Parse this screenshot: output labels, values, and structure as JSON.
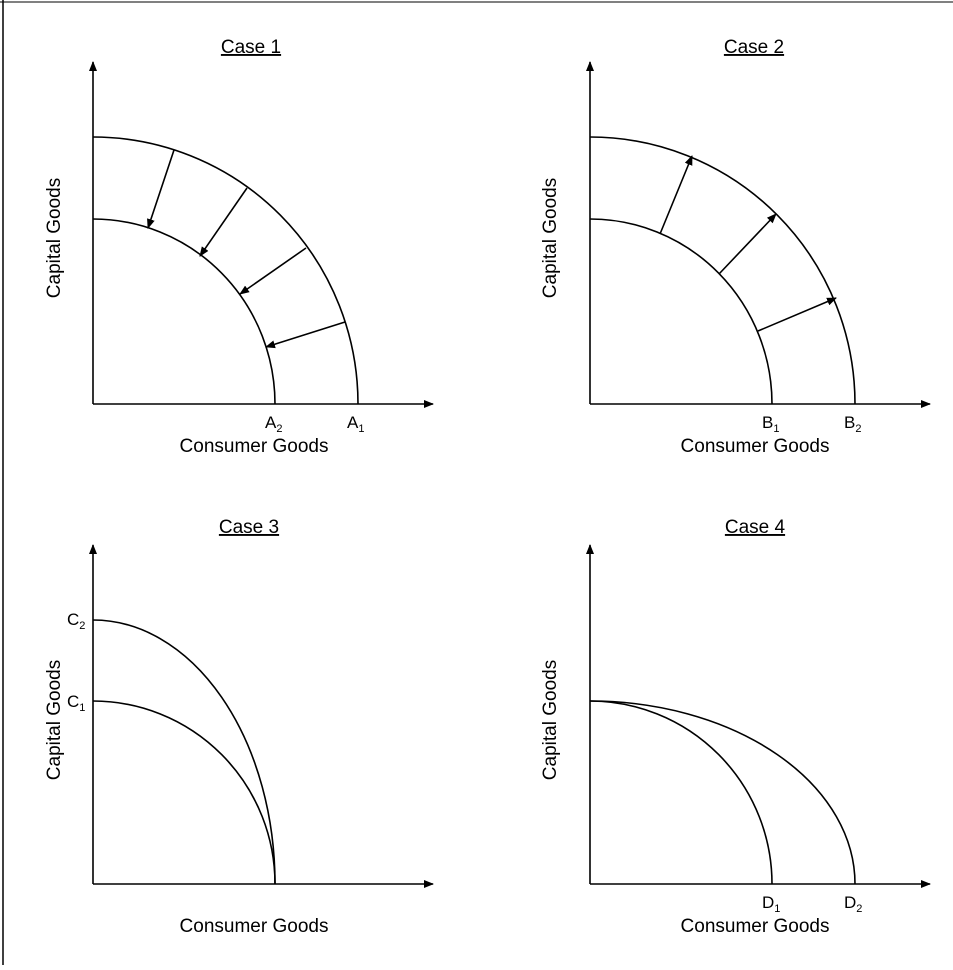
{
  "panels": [
    {
      "title": "Case 1",
      "ylabel": "Capital Goods",
      "xlabel": "Consumer Goods",
      "x_points": [
        {
          "letter": "A",
          "sub": "2"
        },
        {
          "letter": "A",
          "sub": "1"
        }
      ],
      "y_points": [],
      "arrow_direction": "inward"
    },
    {
      "title": "Case 2",
      "ylabel": "Capital Goods",
      "xlabel": "Consumer Goods",
      "x_points": [
        {
          "letter": "B",
          "sub": "1"
        },
        {
          "letter": "B",
          "sub": "2"
        }
      ],
      "y_points": [],
      "arrow_direction": "outward"
    },
    {
      "title": "Case 3",
      "ylabel": "Capital Goods",
      "xlabel": "Consumer Goods",
      "x_points": [],
      "y_points": [
        {
          "letter": "C",
          "sub": "2"
        },
        {
          "letter": "C",
          "sub": "1"
        }
      ],
      "arrow_direction": "none"
    },
    {
      "title": "Case 4",
      "ylabel": "Capital Goods",
      "xlabel": "Consumer Goods",
      "x_points": [
        {
          "letter": "D",
          "sub": "1"
        },
        {
          "letter": "D",
          "sub": "2"
        }
      ],
      "y_points": [],
      "arrow_direction": "none"
    }
  ]
}
